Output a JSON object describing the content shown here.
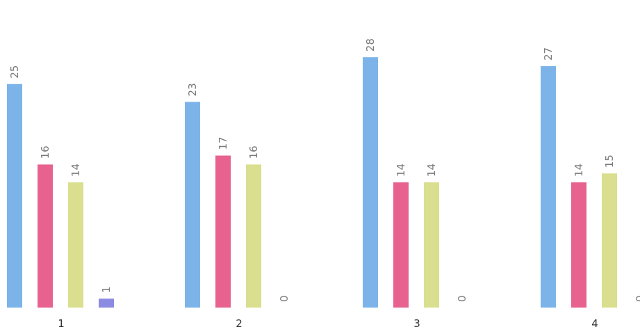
{
  "chart_data": {
    "type": "bar",
    "categories": [
      "1",
      "2",
      "3",
      "4"
    ],
    "series": [
      {
        "values": [
          25,
          23,
          28,
          27
        ],
        "color": "#7cb4ea"
      },
      {
        "values": [
          16,
          17,
          14,
          14
        ],
        "color": "#e8628f"
      },
      {
        "values": [
          14,
          16,
          14,
          15
        ],
        "color": "#d9df8e"
      },
      {
        "values": [
          1,
          0,
          0,
          0
        ],
        "color": "#8c8be2"
      }
    ],
    "ylim": [
      0,
      30
    ],
    "grid": false,
    "legend": "none",
    "data_labels": true
  }
}
